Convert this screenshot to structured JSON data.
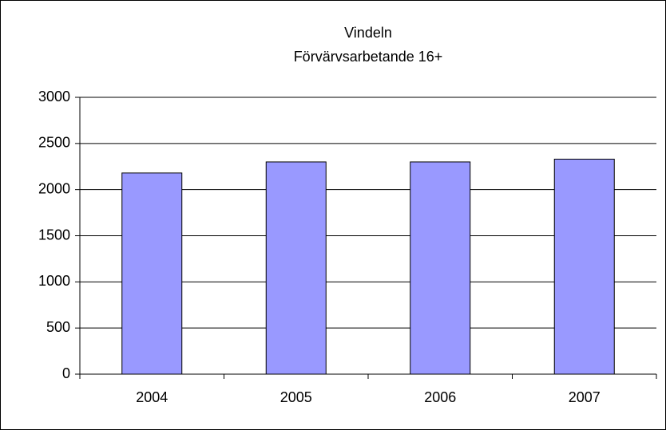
{
  "chart_data": {
    "type": "bar",
    "title": "Vindeln",
    "subtitle": "Förvärvsarbetande 16+",
    "categories": [
      "2004",
      "2005",
      "2006",
      "2007"
    ],
    "values": [
      2180,
      2300,
      2300,
      2330
    ],
    "color": "#9999ff",
    "ylim": [
      0,
      3000
    ],
    "yticks": [
      0,
      500,
      1000,
      1500,
      2000,
      2500,
      3000
    ],
    "grid": true
  }
}
